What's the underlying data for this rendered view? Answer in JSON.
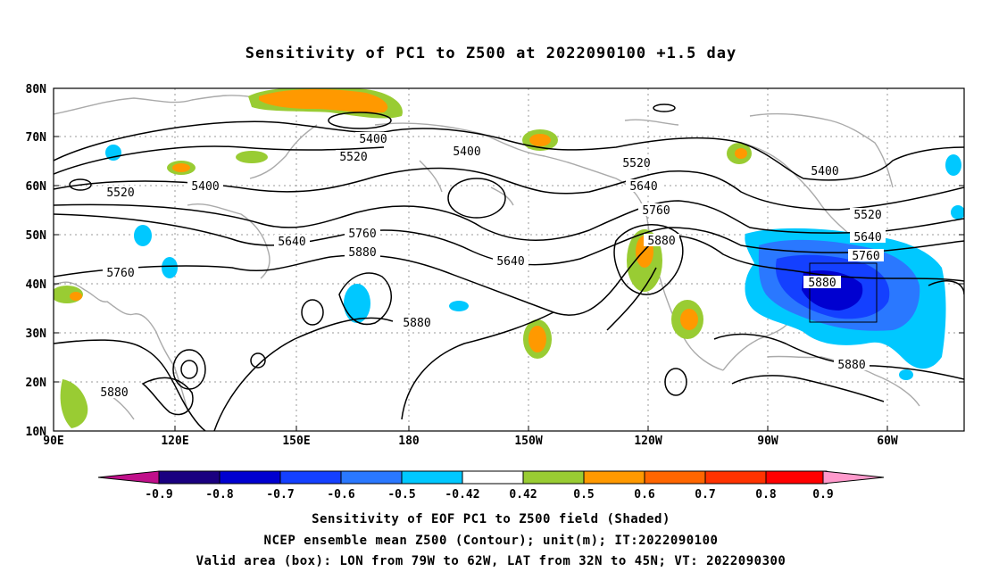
{
  "title": "Sensitivity of PC1 to Z500 at 2022090100 +1.5 day",
  "lat_labels": [
    "80N",
    "70N",
    "60N",
    "50N",
    "40N",
    "30N",
    "20N",
    "10N"
  ],
  "lon_labels": [
    "90E",
    "120E",
    "150E",
    "180",
    "150W",
    "120W",
    "90W",
    "60W"
  ],
  "contour_labels": [
    "5400",
    "5400",
    "5400",
    "5400",
    "5520",
    "5520",
    "5520",
    "5520",
    "5640",
    "5640",
    "5640",
    "5640",
    "5760",
    "5760",
    "5760",
    "5760",
    "5880",
    "5880",
    "5880",
    "5880",
    "5880",
    "5880"
  ],
  "colorbar": {
    "labels": [
      "-0.9",
      "-0.8",
      "-0.7",
      "-0.6",
      "-0.5",
      "-0.42",
      "0.42",
      "0.5",
      "0.6",
      "0.7",
      "0.8",
      "0.9"
    ],
    "colors": [
      "#1a0080",
      "#0000d0",
      "#1440ff",
      "#2a78ff",
      "#00c8ff",
      "#ffffff",
      "#99cc33",
      "#ff9900",
      "#ff6600",
      "#ff3300",
      "#ff0000"
    ],
    "left_tip_color": "#c0108a",
    "right_tip_color": "#ff9acc"
  },
  "valid_box": {
    "lon_from": "79W",
    "lon_to": "62W",
    "lat_from": "32N",
    "lat_to": "45N"
  },
  "footer": {
    "line1": "Sensitivity of EOF PC1 to Z500 field (Shaded)",
    "line2": "NCEP ensemble mean Z500 (Contour); unit(m); IT:2022090100",
    "line3": "Valid area (box): LON from 79W to 62W, LAT from 32N to 45N; VT: 2022090300"
  }
}
